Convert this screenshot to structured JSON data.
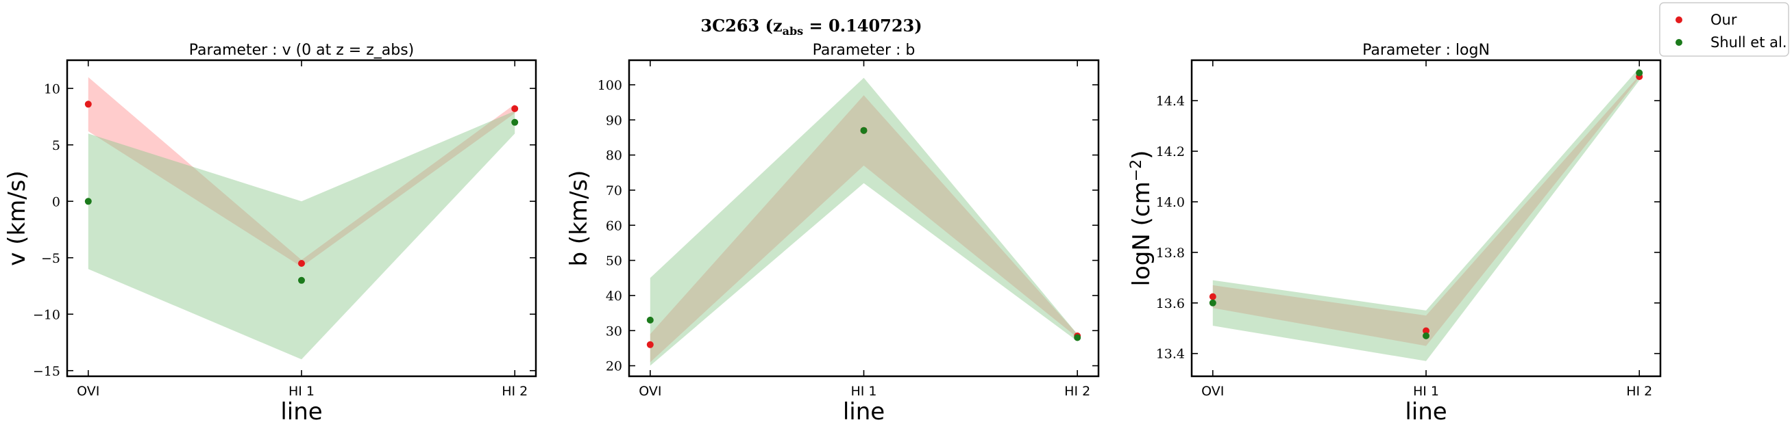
{
  "figure": {
    "title": "3C263 (z",
    "title_sub": "abs",
    "title_rest": " = 0.140723)"
  },
  "legend": {
    "placement": "top-right",
    "entries": [
      {
        "label": "Our",
        "color": "#e41a1c"
      },
      {
        "label": "Shull et al.",
        "color": "#1b7a1b"
      }
    ]
  },
  "chart_data": [
    {
      "type": "scatter",
      "title": "Parameter : v (0 at z = z_abs)",
      "xlabel": "line",
      "ylabel": "v (km/s)",
      "categories": [
        "OVI",
        "HI 1",
        "HI 2"
      ],
      "ylim": [
        -15.5,
        12.5
      ],
      "yticks": [
        -15,
        -10,
        -5,
        0,
        5,
        10
      ],
      "yticklabels": [
        "−15",
        "−10",
        "−5",
        "0",
        "5",
        "10"
      ],
      "series": [
        {
          "name": "Our",
          "color": "#e41a1c",
          "band_color": "#ff9999",
          "values": [
            8.6,
            -5.5,
            8.2
          ],
          "lower": [
            6.2,
            -5.8,
            7.8
          ],
          "upper": [
            11.0,
            -5.2,
            8.6
          ]
        },
        {
          "name": "Shull et al.",
          "color": "#1b7a1b",
          "band_color": "#8cc88c",
          "values": [
            0.0,
            -7.0,
            7.0
          ],
          "lower": [
            -6.0,
            -14.0,
            6.0
          ],
          "upper": [
            6.0,
            0.0,
            8.0
          ]
        }
      ]
    },
    {
      "type": "scatter",
      "title": "Parameter : b",
      "xlabel": "line",
      "ylabel": "b (km/s)",
      "categories": [
        "OVI",
        "HI 1",
        "HI 2"
      ],
      "ylim": [
        17,
        107
      ],
      "yticks": [
        20,
        30,
        40,
        50,
        60,
        70,
        80,
        90,
        100
      ],
      "yticklabels": [
        "20",
        "30",
        "40",
        "50",
        "60",
        "70",
        "80",
        "90",
        "100"
      ],
      "series": [
        {
          "name": "Our",
          "color": "#e41a1c",
          "band_color": "#ff9999",
          "values": [
            26,
            87,
            28.5
          ],
          "lower": [
            21,
            77,
            28
          ],
          "upper": [
            29,
            97,
            29
          ]
        },
        {
          "name": "Shull et al.",
          "color": "#1b7a1b",
          "band_color": "#8cc88c",
          "values": [
            33,
            87,
            28
          ],
          "lower": [
            20,
            72,
            27
          ],
          "upper": [
            45,
            102,
            29
          ]
        }
      ]
    },
    {
      "type": "scatter",
      "title": "Parameter : logN",
      "xlabel": "line",
      "ylabel": "logN (cm",
      "ylabel_sup": "−2",
      "ylabel_tail": ")",
      "categories": [
        "OVI",
        "HI 1",
        "HI 2"
      ],
      "ylim": [
        13.31,
        14.56
      ],
      "yticks": [
        13.4,
        13.6,
        13.8,
        14.0,
        14.2,
        14.4
      ],
      "yticklabels": [
        "13.4",
        "13.6",
        "13.8",
        "14.0",
        "14.2",
        "14.4"
      ],
      "series": [
        {
          "name": "Our",
          "color": "#e41a1c",
          "band_color": "#ff9999",
          "values": [
            13.625,
            13.49,
            14.495
          ],
          "lower": [
            13.58,
            13.43,
            14.49
          ],
          "upper": [
            13.67,
            13.55,
            14.5
          ]
        },
        {
          "name": "Shull et al.",
          "color": "#1b7a1b",
          "band_color": "#8cc88c",
          "values": [
            13.6,
            13.47,
            14.51
          ],
          "lower": [
            13.51,
            13.37,
            14.48
          ],
          "upper": [
            13.69,
            13.57,
            14.53
          ]
        }
      ]
    }
  ]
}
